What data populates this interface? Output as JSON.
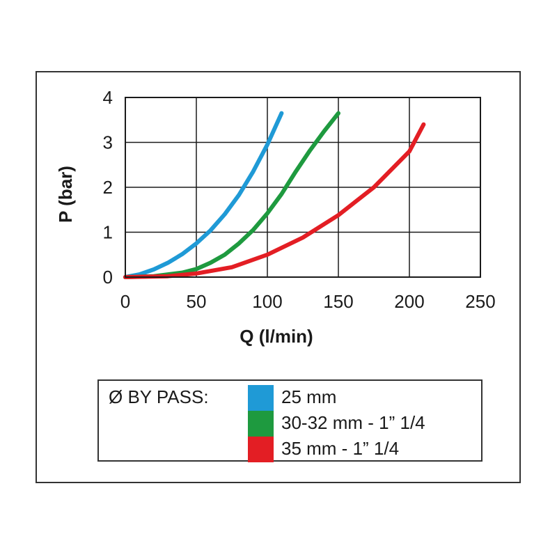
{
  "chart_data": {
    "type": "line",
    "xlabel": "Q  (l/min)",
    "ylabel": "P (bar)",
    "xlim": [
      0,
      250
    ],
    "ylim": [
      0,
      4
    ],
    "xticks": [
      "0",
      "50",
      "100",
      "150",
      "200",
      "250"
    ],
    "yticks": [
      "0",
      "1",
      "2",
      "3",
      "4"
    ],
    "grid": true,
    "legend_position": "bottom",
    "series": [
      {
        "name": "25 mm",
        "color": "#1f9ad6",
        "points": [
          [
            0,
            0
          ],
          [
            10,
            0.06
          ],
          [
            20,
            0.17
          ],
          [
            30,
            0.32
          ],
          [
            40,
            0.51
          ],
          [
            50,
            0.75
          ],
          [
            60,
            1.04
          ],
          [
            70,
            1.4
          ],
          [
            80,
            1.83
          ],
          [
            90,
            2.35
          ],
          [
            100,
            2.95
          ],
          [
            110,
            3.65
          ]
        ]
      },
      {
        "name": "30-32 mm - 1” 1/4",
        "color": "#1e9a3f",
        "points": [
          [
            0,
            0
          ],
          [
            20,
            0.02
          ],
          [
            40,
            0.1
          ],
          [
            50,
            0.18
          ],
          [
            60,
            0.32
          ],
          [
            70,
            0.5
          ],
          [
            80,
            0.75
          ],
          [
            90,
            1.05
          ],
          [
            100,
            1.42
          ],
          [
            110,
            1.85
          ],
          [
            120,
            2.35
          ],
          [
            130,
            2.82
          ],
          [
            140,
            3.25
          ],
          [
            150,
            3.65
          ]
        ]
      },
      {
        "name": "35 mm - 1” 1/4",
        "color": "#e31e24",
        "points": [
          [
            0,
            0
          ],
          [
            30,
            0.02
          ],
          [
            50,
            0.08
          ],
          [
            75,
            0.22
          ],
          [
            100,
            0.5
          ],
          [
            125,
            0.88
          ],
          [
            150,
            1.38
          ],
          [
            175,
            2.0
          ],
          [
            200,
            2.8
          ],
          [
            210,
            3.4
          ]
        ]
      }
    ]
  },
  "legend": {
    "title": "Ø BY PASS:"
  }
}
